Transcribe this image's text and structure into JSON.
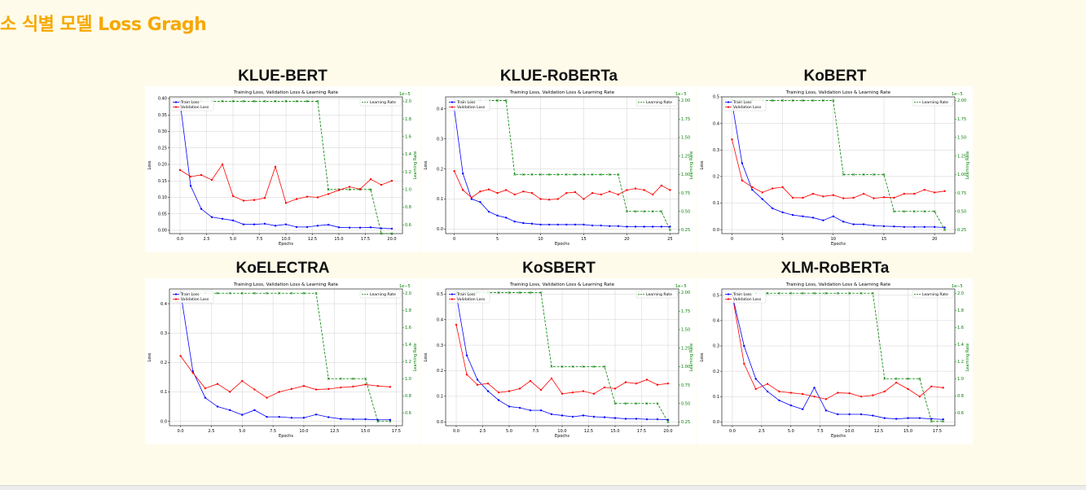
{
  "page": {
    "title": "소 식별 모델 Loss Gragh"
  },
  "common": {
    "chart_title": "Training Loss, Validation Loss & Learning Rate",
    "xlabel": "Epochs",
    "ylabel": "Loss",
    "y2label": "Learning Rate",
    "y2_offset_text": "1e−5",
    "legend_train": "Train Loss",
    "legend_val": "Validation Loss",
    "legend_lr": "Learning Rate",
    "colors": {
      "train": "#0000ff",
      "val": "#ff0000",
      "lr": "#008000",
      "grid": "#d0d0d0"
    }
  },
  "chart_data": [
    {
      "name": "KLUE-BERT",
      "type": "line",
      "xlim": [
        -1,
        21
      ],
      "xticks": [
        0,
        2.5,
        5,
        7.5,
        10,
        12.5,
        15,
        17.5,
        20
      ],
      "xticklabels": [
        "0.0",
        "2.5",
        "5.0",
        "7.5",
        "10.0",
        "12.5",
        "15.0",
        "17.5",
        "20.0"
      ],
      "ylim": [
        -0.01,
        0.405
      ],
      "yticks": [
        0,
        0.05,
        0.1,
        0.15,
        0.2,
        0.25,
        0.3,
        0.35,
        0.4
      ],
      "yticklabels": [
        "0.00",
        "0.05",
        "0.10",
        "0.15",
        "0.20",
        "0.25",
        "0.30",
        "0.35",
        "0.40"
      ],
      "y2lim": [
        0.5,
        2.05
      ],
      "y2ticks": [
        0.6,
        0.8,
        1.0,
        1.2,
        1.4,
        1.6,
        1.8,
        2.0
      ],
      "y2ticklabels": [
        "0.6",
        "0.8",
        "1.0",
        "1.2",
        "1.4",
        "1.6",
        "1.8",
        "2.0"
      ],
      "x": [
        0,
        1,
        2,
        3,
        4,
        5,
        6,
        7,
        8,
        9,
        10,
        11,
        12,
        13,
        14,
        15,
        16,
        17,
        18,
        19,
        20
      ],
      "train": [
        0.39,
        0.135,
        0.065,
        0.04,
        0.035,
        0.03,
        0.018,
        0.018,
        0.02,
        0.014,
        0.018,
        0.01,
        0.01,
        0.014,
        0.017,
        0.009,
        0.008,
        0.008,
        0.009,
        0.006,
        0.005
      ],
      "val": [
        0.183,
        0.163,
        0.168,
        0.153,
        0.2,
        0.104,
        0.09,
        0.092,
        0.098,
        0.193,
        0.083,
        0.095,
        0.102,
        0.1,
        0.11,
        0.122,
        0.132,
        0.125,
        0.155,
        0.138,
        0.15
      ],
      "lr": [
        2,
        2,
        2,
        2,
        2,
        2,
        2,
        2,
        2,
        2,
        2,
        2,
        2,
        2,
        1,
        1,
        1,
        1,
        1,
        0.5,
        0.5
      ]
    },
    {
      "name": "KLUE-RoBERTa",
      "type": "line",
      "xlim": [
        -1,
        26
      ],
      "xticks": [
        0,
        5,
        10,
        15,
        20,
        25
      ],
      "xticklabels": [
        "0",
        "5",
        "10",
        "15",
        "20",
        "25"
      ],
      "ylim": [
        -0.015,
        0.44
      ],
      "yticks": [
        0,
        0.1,
        0.2,
        0.3,
        0.4
      ],
      "yticklabels": [
        "0.0",
        "0.1",
        "0.2",
        "0.3",
        "0.4"
      ],
      "y2lim": [
        0.2,
        2.05
      ],
      "y2ticks": [
        0.25,
        0.5,
        0.75,
        1.0,
        1.25,
        1.5,
        1.75,
        2.0
      ],
      "y2ticklabels": [
        "0.25",
        "0.50",
        "0.75",
        "1.00",
        "1.25",
        "1.50",
        "1.75",
        "2.00"
      ],
      "x": [
        0,
        1,
        2,
        3,
        4,
        5,
        6,
        7,
        8,
        9,
        10,
        11,
        12,
        13,
        14,
        15,
        16,
        17,
        18,
        19,
        20,
        21,
        22,
        23,
        24,
        25
      ],
      "train": [
        0.4,
        0.185,
        0.1,
        0.09,
        0.058,
        0.045,
        0.038,
        0.025,
        0.02,
        0.018,
        0.015,
        0.015,
        0.015,
        0.015,
        0.015,
        0.015,
        0.012,
        0.012,
        0.01,
        0.01,
        0.008,
        0.008,
        0.008,
        0.008,
        0.008,
        0.008
      ],
      "val": [
        0.193,
        0.13,
        0.105,
        0.125,
        0.132,
        0.12,
        0.13,
        0.115,
        0.125,
        0.12,
        0.1,
        0.098,
        0.1,
        0.12,
        0.123,
        0.1,
        0.12,
        0.115,
        0.125,
        0.115,
        0.13,
        0.135,
        0.13,
        0.115,
        0.145,
        0.13
      ],
      "lr": [
        2,
        2,
        2,
        2,
        2,
        2,
        2,
        1,
        1,
        1,
        1,
        1,
        1,
        1,
        1,
        1,
        1,
        1,
        1,
        1,
        0.5,
        0.5,
        0.5,
        0.5,
        0.5,
        0.25
      ]
    },
    {
      "name": "KoBERT",
      "type": "line",
      "xlim": [
        -1,
        22
      ],
      "xticks": [
        0,
        5,
        10,
        15,
        20
      ],
      "xticklabels": [
        "0",
        "5",
        "10",
        "15",
        "20"
      ],
      "ylim": [
        -0.015,
        0.5
      ],
      "yticks": [
        0,
        0.1,
        0.2,
        0.3,
        0.4,
        0.5
      ],
      "yticklabels": [
        "0.0",
        "0.1",
        "0.2",
        "0.3",
        "0.4",
        "0.5"
      ],
      "y2lim": [
        0.2,
        2.05
      ],
      "y2ticks": [
        0.25,
        0.5,
        0.75,
        1.0,
        1.25,
        1.5,
        1.75,
        2.0
      ],
      "y2ticklabels": [
        "0.25",
        "0.50",
        "0.75",
        "1.00",
        "1.25",
        "1.50",
        "1.75",
        "2.00"
      ],
      "x": [
        0,
        1,
        2,
        3,
        4,
        5,
        6,
        7,
        8,
        9,
        10,
        11,
        12,
        13,
        14,
        15,
        16,
        17,
        18,
        19,
        20,
        21
      ],
      "train": [
        0.48,
        0.25,
        0.15,
        0.115,
        0.08,
        0.065,
        0.055,
        0.05,
        0.045,
        0.035,
        0.05,
        0.03,
        0.02,
        0.02,
        0.015,
        0.013,
        0.012,
        0.01,
        0.01,
        0.01,
        0.01,
        0.008
      ],
      "val": [
        0.34,
        0.185,
        0.16,
        0.14,
        0.155,
        0.16,
        0.12,
        0.12,
        0.135,
        0.125,
        0.13,
        0.118,
        0.12,
        0.135,
        0.118,
        0.122,
        0.12,
        0.135,
        0.135,
        0.15,
        0.14,
        0.145
      ],
      "lr": [
        2,
        2,
        2,
        2,
        2,
        2,
        2,
        2,
        2,
        2,
        2,
        1,
        1,
        1,
        1,
        1,
        0.5,
        0.5,
        0.5,
        0.5,
        0.5,
        0.25
      ]
    },
    {
      "name": "KoELECTRA",
      "type": "line",
      "xlim": [
        -0.9,
        18
      ],
      "xticks": [
        0,
        2.5,
        5,
        7.5,
        10,
        12.5,
        15,
        17.5
      ],
      "xticklabels": [
        "0.0",
        "2.5",
        "5.0",
        "7.5",
        "10.0",
        "12.5",
        "15.0",
        "17.5"
      ],
      "ylim": [
        -0.015,
        0.45
      ],
      "yticks": [
        0,
        0.1,
        0.2,
        0.3,
        0.4
      ],
      "yticklabels": [
        "0.0",
        "0.1",
        "0.2",
        "0.3",
        "0.4"
      ],
      "y2lim": [
        0.45,
        2.05
      ],
      "y2ticks": [
        0.6,
        0.8,
        1.0,
        1.2,
        1.4,
        1.6,
        1.8,
        2.0
      ],
      "y2ticklabels": [
        "0.6",
        "0.8",
        "1.0",
        "1.2",
        "1.4",
        "1.6",
        "1.8",
        "2.0"
      ],
      "x": [
        0,
        1,
        2,
        3,
        4,
        5,
        6,
        7,
        8,
        9,
        10,
        11,
        12,
        13,
        14,
        15,
        16,
        17
      ],
      "train": [
        0.44,
        0.17,
        0.08,
        0.05,
        0.038,
        0.022,
        0.038,
        0.015,
        0.015,
        0.012,
        0.012,
        0.023,
        0.014,
        0.008,
        0.007,
        0.007,
        0.005,
        0.005
      ],
      "val": [
        0.222,
        0.165,
        0.112,
        0.127,
        0.1,
        0.137,
        0.108,
        0.08,
        0.1,
        0.11,
        0.12,
        0.108,
        0.11,
        0.115,
        0.118,
        0.125,
        0.12,
        0.117
      ],
      "lr": [
        2,
        2,
        2,
        2,
        2,
        2,
        2,
        2,
        2,
        2,
        2,
        2,
        1,
        1,
        1,
        1,
        0.5,
        0.5
      ]
    },
    {
      "name": "KoSBERT",
      "type": "line",
      "xlim": [
        -1,
        21
      ],
      "xticks": [
        0,
        2.5,
        5,
        7.5,
        10,
        12.5,
        15,
        17.5,
        20
      ],
      "xticklabels": [
        "0.0",
        "2.5",
        "5.0",
        "7.5",
        "10.0",
        "12.5",
        "15.0",
        "17.5",
        "20.0"
      ],
      "ylim": [
        -0.015,
        0.52
      ],
      "yticks": [
        0,
        0.1,
        0.2,
        0.3,
        0.4,
        0.5
      ],
      "yticklabels": [
        "0.0",
        "0.1",
        "0.2",
        "0.3",
        "0.4",
        "0.5"
      ],
      "y2lim": [
        0.2,
        2.05
      ],
      "y2ticks": [
        0.25,
        0.5,
        0.75,
        1.0,
        1.25,
        1.5,
        1.75,
        2.0
      ],
      "y2ticklabels": [
        "0.25",
        "0.50",
        "0.75",
        "1.00",
        "1.25",
        "1.50",
        "1.75",
        "2.00"
      ],
      "x": [
        0,
        1,
        2,
        3,
        4,
        5,
        6,
        7,
        8,
        9,
        10,
        11,
        12,
        13,
        14,
        15,
        16,
        17,
        18,
        19,
        20
      ],
      "train": [
        0.5,
        0.26,
        0.165,
        0.12,
        0.085,
        0.06,
        0.055,
        0.045,
        0.045,
        0.03,
        0.025,
        0.02,
        0.025,
        0.02,
        0.018,
        0.015,
        0.012,
        0.012,
        0.01,
        0.01,
        0.008
      ],
      "val": [
        0.38,
        0.185,
        0.145,
        0.15,
        0.115,
        0.12,
        0.13,
        0.16,
        0.125,
        0.17,
        0.11,
        0.115,
        0.12,
        0.11,
        0.135,
        0.13,
        0.155,
        0.15,
        0.165,
        0.145,
        0.15
      ],
      "lr": [
        2,
        2,
        2,
        2,
        2,
        2,
        2,
        2,
        2,
        1,
        1,
        1,
        1,
        1,
        1,
        0.5,
        0.5,
        0.5,
        0.5,
        0.5,
        0.25
      ]
    },
    {
      "name": "XLM-RoBERTa",
      "type": "line",
      "xlim": [
        -0.9,
        19
      ],
      "xticks": [
        0,
        2.5,
        5,
        7.5,
        10,
        12.5,
        15,
        17.5
      ],
      "xticklabels": [
        "0.0",
        "2.5",
        "5.0",
        "7.5",
        "10.0",
        "12.5",
        "15.0",
        "17.5"
      ],
      "ylim": [
        -0.015,
        0.525
      ],
      "yticks": [
        0,
        0.1,
        0.2,
        0.3,
        0.4,
        0.5
      ],
      "yticklabels": [
        "0.0",
        "0.1",
        "0.2",
        "0.3",
        "0.4",
        "0.5"
      ],
      "y2lim": [
        0.45,
        2.05
      ],
      "y2ticks": [
        0.6,
        0.8,
        1.0,
        1.2,
        1.4,
        1.6,
        1.8,
        2.0
      ],
      "y2ticklabels": [
        "0.6",
        "0.8",
        "1.0",
        "1.2",
        "1.4",
        "1.6",
        "1.8",
        "2.0"
      ],
      "x": [
        0,
        1,
        2,
        3,
        4,
        5,
        6,
        7,
        8,
        9,
        10,
        11,
        12,
        13,
        14,
        15,
        16,
        17,
        18
      ],
      "train": [
        0.5,
        0.3,
        0.17,
        0.12,
        0.085,
        0.065,
        0.05,
        0.135,
        0.045,
        0.03,
        0.03,
        0.03,
        0.025,
        0.015,
        0.012,
        0.015,
        0.015,
        0.012,
        0.01
      ],
      "val": [
        0.5,
        0.23,
        0.13,
        0.15,
        0.12,
        0.115,
        0.11,
        0.1,
        0.09,
        0.115,
        0.113,
        0.1,
        0.105,
        0.12,
        0.155,
        0.13,
        0.1,
        0.14,
        0.135
      ],
      "lr": [
        2,
        2,
        2,
        2,
        2,
        2,
        2,
        2,
        2,
        2,
        2,
        2,
        2,
        1,
        1,
        1,
        1,
        0.5,
        0.5
      ]
    }
  ]
}
